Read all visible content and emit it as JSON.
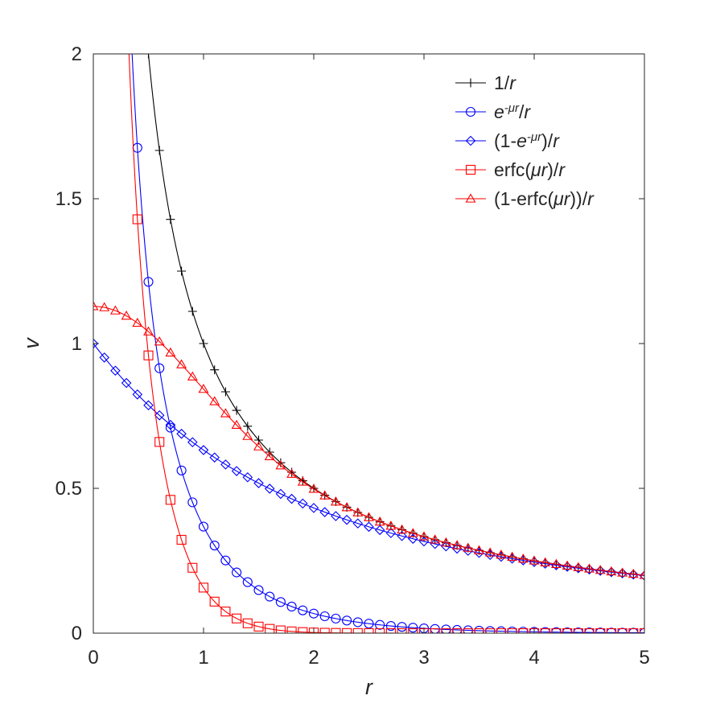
{
  "chart_data": {
    "type": "line",
    "title": "",
    "xlabel": "r",
    "ylabel": "v",
    "xlim": [
      0,
      5
    ],
    "ylim": [
      0,
      2
    ],
    "xticks": [
      0,
      1,
      2,
      3,
      4,
      5
    ],
    "yticks": [
      0,
      0.5,
      1,
      1.5,
      2
    ],
    "xtick_labels": [
      "0",
      "1",
      "2",
      "3",
      "4",
      "5"
    ],
    "ytick_labels": [
      "0",
      "0.5",
      "1",
      "1.5",
      "2"
    ],
    "grid": false,
    "legend_position": "top-right",
    "mu": 1.0,
    "sample_step": 0.1,
    "series": [
      {
        "name": "1/r",
        "legend": {
          "parts": [
            {
              "t": "1/",
              "i": false
            },
            {
              "t": "r",
              "i": true
            }
          ]
        },
        "color": "#000000",
        "marker": "plus",
        "formula": "1/r",
        "points": [
          [
            0.5,
            2.0
          ],
          [
            0.6,
            1.667
          ],
          [
            0.7,
            1.429
          ],
          [
            0.8,
            1.25
          ],
          [
            0.9,
            1.111
          ],
          [
            1.0,
            1.0
          ],
          [
            1.5,
            0.667
          ],
          [
            2.0,
            0.5
          ],
          [
            3.0,
            0.333
          ],
          [
            4.0,
            0.25
          ],
          [
            5.0,
            0.2
          ]
        ]
      },
      {
        "name": "e^-μr/r",
        "legend": {
          "parts": [
            {
              "t": "e",
              "i": true
            },
            {
              "t": "-μr",
              "i": true,
              "sup": true
            },
            {
              "t": "/",
              "i": false
            },
            {
              "t": "r",
              "i": true
            }
          ]
        },
        "color": "#0000ff",
        "marker": "circle",
        "formula": "exp(-mu*r)/r",
        "points": [
          [
            0.4,
            1.676
          ],
          [
            0.5,
            1.213
          ],
          [
            0.6,
            0.915
          ],
          [
            0.8,
            0.562
          ],
          [
            1.0,
            0.368
          ],
          [
            1.5,
            0.149
          ],
          [
            2.0,
            0.068
          ],
          [
            3.0,
            0.017
          ],
          [
            4.0,
            0.005
          ],
          [
            5.0,
            0.001
          ]
        ]
      },
      {
        "name": "(1-e^-μr)/r",
        "legend": {
          "parts": [
            {
              "t": "(1-",
              "i": false
            },
            {
              "t": "e",
              "i": true
            },
            {
              "t": "-μr",
              "i": true,
              "sup": true
            },
            {
              "t": ")/",
              "i": false
            },
            {
              "t": "r",
              "i": true
            }
          ]
        },
        "color": "#0000ff",
        "marker": "diamond",
        "formula": "(1-exp(-mu*r))/r",
        "points": [
          [
            0.0,
            1.0
          ],
          [
            0.5,
            0.787
          ],
          [
            1.0,
            0.632
          ],
          [
            1.5,
            0.518
          ],
          [
            2.0,
            0.432
          ],
          [
            3.0,
            0.317
          ],
          [
            4.0,
            0.245
          ],
          [
            5.0,
            0.199
          ]
        ]
      },
      {
        "name": "erfc(μr)/r",
        "legend": {
          "parts": [
            {
              "t": "erfc(",
              "i": false
            },
            {
              "t": "μr",
              "i": true
            },
            {
              "t": ")/",
              "i": false
            },
            {
              "t": "r",
              "i": true
            }
          ]
        },
        "color": "#ff0000",
        "marker": "square",
        "formula": "erfc(mu*r)/r",
        "points": [
          [
            0.4,
            1.43
          ],
          [
            0.5,
            0.959
          ],
          [
            0.6,
            0.663
          ],
          [
            0.7,
            0.461
          ],
          [
            0.8,
            0.322
          ],
          [
            1.0,
            0.157
          ],
          [
            1.5,
            0.022
          ],
          [
            2.0,
            0.002
          ],
          [
            3.0,
            0.0
          ],
          [
            5.0,
            0.0
          ]
        ]
      },
      {
        "name": "(1-erfc(μr))/r",
        "legend": {
          "parts": [
            {
              "t": "(1-erfc(",
              "i": false
            },
            {
              "t": "μr",
              "i": true
            },
            {
              "t": "))/",
              "i": false
            },
            {
              "t": "r",
              "i": true
            }
          ]
        },
        "color": "#ff0000",
        "marker": "triangle",
        "formula": "erf(mu*r)/r",
        "points": [
          [
            0.0,
            1.128
          ],
          [
            0.5,
            1.041
          ],
          [
            1.0,
            0.843
          ],
          [
            1.5,
            0.644
          ],
          [
            2.0,
            0.498
          ],
          [
            3.0,
            0.333
          ],
          [
            4.0,
            0.25
          ],
          [
            5.0,
            0.2
          ]
        ]
      }
    ]
  }
}
